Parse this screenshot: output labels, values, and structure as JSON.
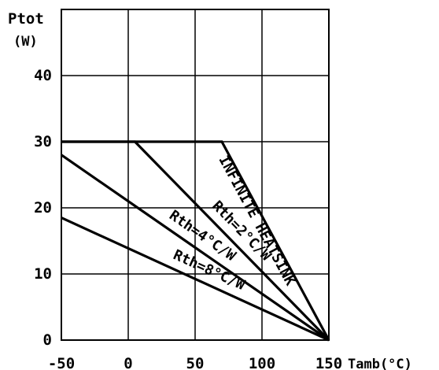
{
  "chart_data": {
    "type": "line",
    "title": "",
    "ylabel_line1": "Ptot",
    "ylabel_line2": "(W)",
    "xlabel": "Tamb(°C)",
    "xlim": [
      -50,
      150
    ],
    "ylim": [
      0,
      50
    ],
    "x_ticks": [
      -50,
      0,
      50,
      100,
      150
    ],
    "x_tick_labels": [
      "-50",
      "0",
      "50",
      "100",
      "150"
    ],
    "y_ticks": [
      0,
      10,
      20,
      30,
      40
    ],
    "y_tick_labels": [
      "0",
      "10",
      "20",
      "30",
      "40"
    ],
    "x_grid": [
      -50,
      0,
      50,
      100,
      150
    ],
    "y_grid": [
      10,
      20,
      30,
      40
    ],
    "grid": true,
    "series": [
      {
        "name": "INFINITE HEATSINK",
        "x": [
          -50,
          70,
          150
        ],
        "y": [
          30,
          30,
          0
        ]
      },
      {
        "name": "Rth=2°C/W",
        "x": [
          -50,
          5,
          150
        ],
        "y": [
          30,
          30,
          0
        ]
      },
      {
        "name": "Rth=4°C/W",
        "x": [
          -50,
          150
        ],
        "y": [
          28,
          0
        ]
      },
      {
        "name": "Rth=8°C/W",
        "x": [
          -50,
          150
        ],
        "y": [
          18.5,
          0
        ]
      }
    ]
  }
}
